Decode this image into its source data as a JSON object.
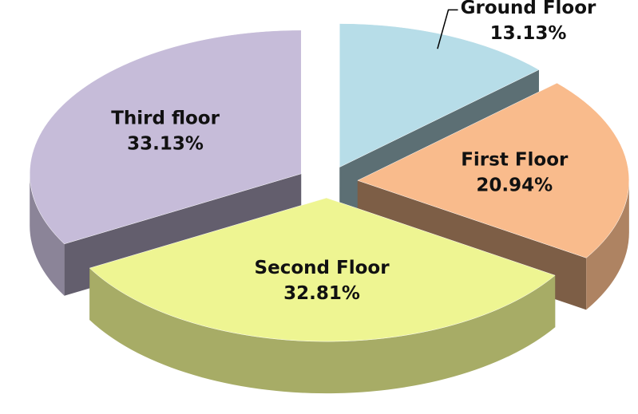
{
  "chart_data": {
    "type": "pie3d",
    "categories": [
      "Ground Floor",
      "First Floor",
      "Second Floor",
      "Third floor"
    ],
    "values": [
      13.13,
      20.94,
      32.81,
      33.13
    ],
    "value_labels": [
      "13.13%",
      "20.94%",
      "32.81%",
      "33.13%"
    ],
    "colors": [
      "#b7dde8",
      "#f9bb8c",
      "#eef592",
      "#c6bcd9"
    ]
  }
}
